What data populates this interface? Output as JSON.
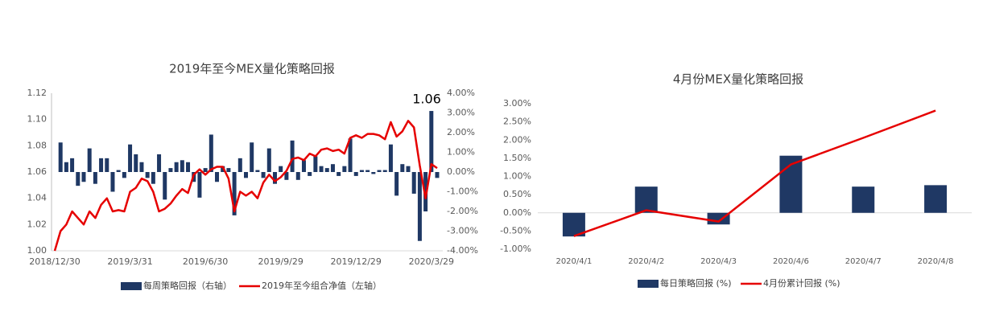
{
  "chart_data": [
    {
      "type": "combo",
      "title": "2019年至今MEX量化策略回报",
      "annotation": "1.06",
      "categories": [
        "2018/12/30",
        null,
        null,
        null,
        null,
        null,
        null,
        null,
        null,
        null,
        null,
        null,
        null,
        "2019/3/31",
        null,
        null,
        null,
        null,
        null,
        null,
        null,
        null,
        null,
        null,
        null,
        null,
        "2019/6/30",
        null,
        null,
        null,
        null,
        null,
        null,
        null,
        null,
        null,
        null,
        null,
        null,
        "2019/9/29",
        null,
        null,
        null,
        null,
        null,
        null,
        null,
        null,
        null,
        null,
        null,
        null,
        "2019/12/29",
        null,
        null,
        null,
        null,
        null,
        null,
        null,
        null,
        null,
        null,
        null,
        null,
        "2020/3/29",
        null
      ],
      "series": [
        {
          "name": "每周策略回报（右轴）",
          "type": "bar",
          "axis": "y2",
          "color": "#1f3864",
          "values": [
            null,
            1.5,
            0.5,
            0.7,
            -0.7,
            -0.5,
            1.2,
            -0.6,
            0.7,
            0.7,
            -1.0,
            0.1,
            -0.3,
            1.4,
            0.9,
            0.5,
            -0.3,
            -0.6,
            0.9,
            -1.4,
            0.2,
            0.5,
            0.6,
            0.5,
            -0.5,
            -1.3,
            0.2,
            1.9,
            -0.5,
            0.3,
            0.2,
            -2.2,
            0.7,
            -0.3,
            1.5,
            0.1,
            -0.3,
            1.2,
            -0.6,
            0.3,
            -0.4,
            1.6,
            -0.4,
            0.6,
            -0.2,
            0.8,
            0.3,
            0.2,
            0.4,
            -0.2,
            0.3,
            1.7,
            -0.2,
            0.1,
            0.1,
            -0.1,
            0.1,
            0.1,
            1.4,
            -1.2,
            0.4,
            0.3,
            -1.1,
            -3.5,
            -2.0,
            3.1,
            -0.3
          ]
        },
        {
          "name": "2019年至今组合净值（左轴）",
          "type": "line",
          "color": "#e60000",
          "values": [
            1.0,
            1.015,
            1.02,
            1.03,
            1.025,
            1.02,
            1.03,
            1.025,
            1.035,
            1.04,
            1.03,
            1.031,
            1.03,
            1.045,
            1.048,
            1.055,
            1.053,
            1.045,
            1.03,
            1.032,
            1.036,
            1.042,
            1.047,
            1.044,
            1.058,
            1.062,
            1.058,
            1.062,
            1.064,
            1.064,
            1.055,
            1.03,
            1.045,
            1.042,
            1.045,
            1.04,
            1.052,
            1.058,
            1.053,
            1.056,
            1.061,
            1.07,
            1.071,
            1.069,
            1.074,
            1.072,
            1.077,
            1.078,
            1.076,
            1.077,
            1.074,
            1.086,
            1.088,
            1.086,
            1.089,
            1.089,
            1.088,
            1.085,
            1.098,
            1.087,
            1.091,
            1.099,
            1.094,
            1.065,
            1.04,
            1.066,
            1.063
          ]
        }
      ],
      "ylim": [
        1.0,
        1.12
      ],
      "yticks": [
        {
          "value": 1.0,
          "label": "1.00"
        },
        1.02,
        1.04,
        1.06,
        1.08,
        {
          "value": 1.1,
          "label": "1.10"
        },
        1.12
      ],
      "y2lim": [
        -4,
        4
      ],
      "y2ticks": [
        {
          "value": -4,
          "label": "-4.00%"
        },
        {
          "value": -3,
          "label": "-3.00%"
        },
        {
          "value": -2,
          "label": "-2.00%"
        },
        {
          "value": -1,
          "label": "-1.00%"
        },
        {
          "value": 0,
          "label": "0.00%"
        },
        {
          "value": 1,
          "label": "1.00%"
        },
        {
          "value": 2,
          "label": "2.00%"
        },
        {
          "value": 3,
          "label": "3.00%"
        },
        {
          "value": 4,
          "label": "4.00%"
        }
      ]
    },
    {
      "type": "combo",
      "title": "4月份MEX量化策略回报",
      "categories": [
        "2020/4/1",
        "2020/4/2",
        "2020/4/3",
        "2020/4/6",
        "2020/4/7",
        "2020/4/8"
      ],
      "series": [
        {
          "name": "每日策略回报 (%)",
          "type": "bar",
          "color": "#1f3864",
          "values": [
            -0.65,
            0.72,
            -0.32,
            1.57,
            0.72,
            0.76
          ]
        },
        {
          "name": "4月份累计回报 (%)",
          "type": "line",
          "color": "#e60000",
          "values": [
            -0.64,
            0.07,
            -0.24,
            1.33,
            2.06,
            2.81
          ]
        }
      ],
      "ylim": [
        -1,
        3
      ],
      "yticks": [
        {
          "value": -1,
          "label": "-1.00%"
        },
        {
          "value": -0.5,
          "label": "-0.50%"
        },
        {
          "value": 0,
          "label": "0.00%"
        },
        {
          "value": 0.5,
          "label": "0.50%"
        },
        {
          "value": 1,
          "label": "1.00%"
        },
        {
          "value": 1.5,
          "label": "1.50%"
        },
        {
          "value": 2,
          "label": "2.00%"
        },
        {
          "value": 2.5,
          "label": "2.50%"
        },
        {
          "value": 3,
          "label": "3.00%"
        }
      ]
    }
  ]
}
